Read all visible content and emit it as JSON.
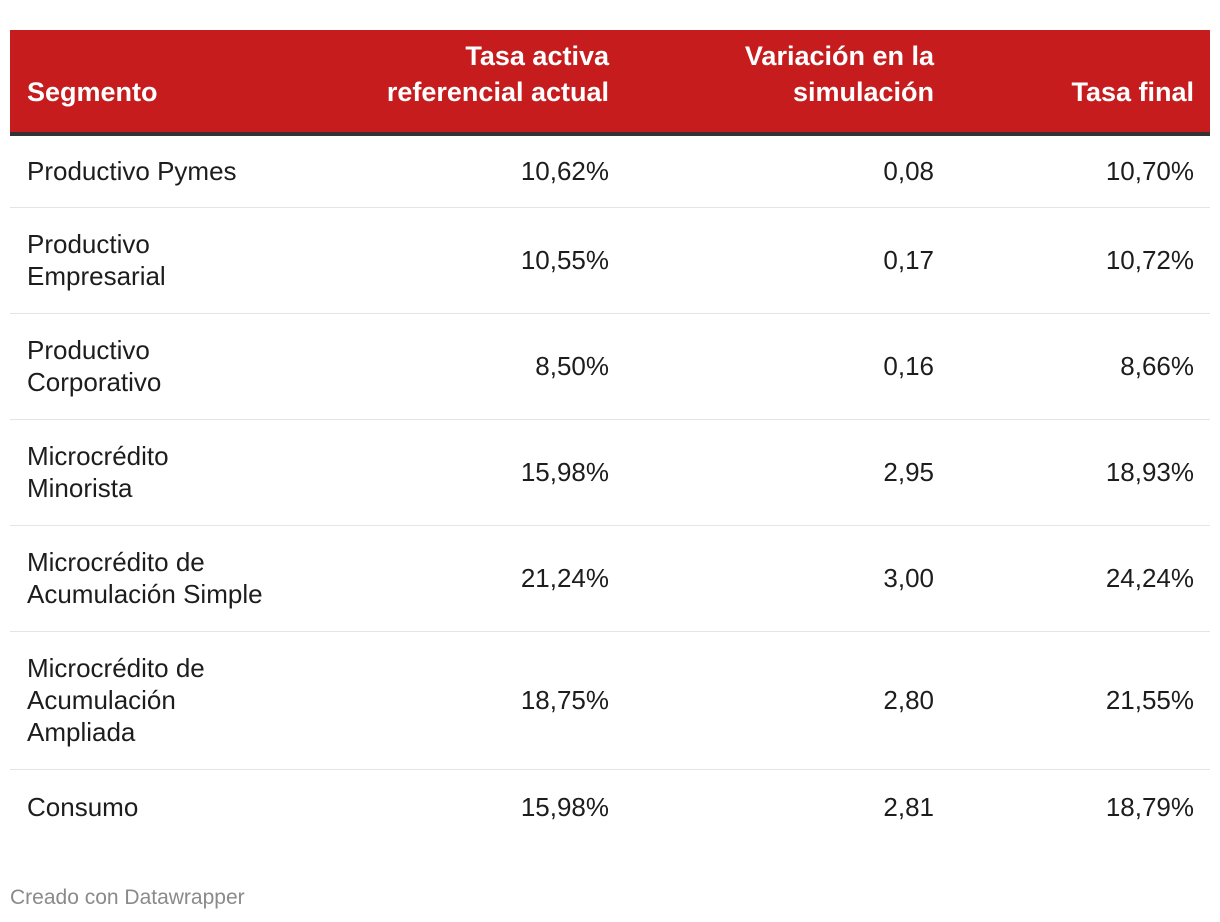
{
  "chart_data": {
    "type": "table",
    "header_color": "#c61c1e",
    "columns": [
      "Segmento",
      "Tasa activa referencial actual",
      "Variación en la simulación",
      "Tasa final"
    ],
    "rows": [
      {
        "segmento": "Productivo Pymes",
        "tasa_actual": "10,62%",
        "variacion": "0,08",
        "tasa_final": "10,70%"
      },
      {
        "segmento": "Productivo Empresarial",
        "tasa_actual": "10,55%",
        "variacion": "0,17",
        "tasa_final": "10,72%"
      },
      {
        "segmento": "Productivo Corporativo",
        "tasa_actual": "8,50%",
        "variacion": "0,16",
        "tasa_final": "8,66%"
      },
      {
        "segmento": "Microcrédito Minorista",
        "tasa_actual": "15,98%",
        "variacion": "2,95",
        "tasa_final": "18,93%"
      },
      {
        "segmento": "Microcrédito de Acumulación Simple",
        "tasa_actual": "21,24%",
        "variacion": "3,00",
        "tasa_final": "24,24%"
      },
      {
        "segmento": "Microcrédito de Acumulación Ampliada",
        "tasa_actual": "18,75%",
        "variacion": "2,80",
        "tasa_final": "21,55%"
      },
      {
        "segmento": "Consumo",
        "tasa_actual": "15,98%",
        "variacion": "2,81",
        "tasa_final": "18,79%"
      }
    ]
  },
  "footer": {
    "credit": "Creado con Datawrapper"
  }
}
